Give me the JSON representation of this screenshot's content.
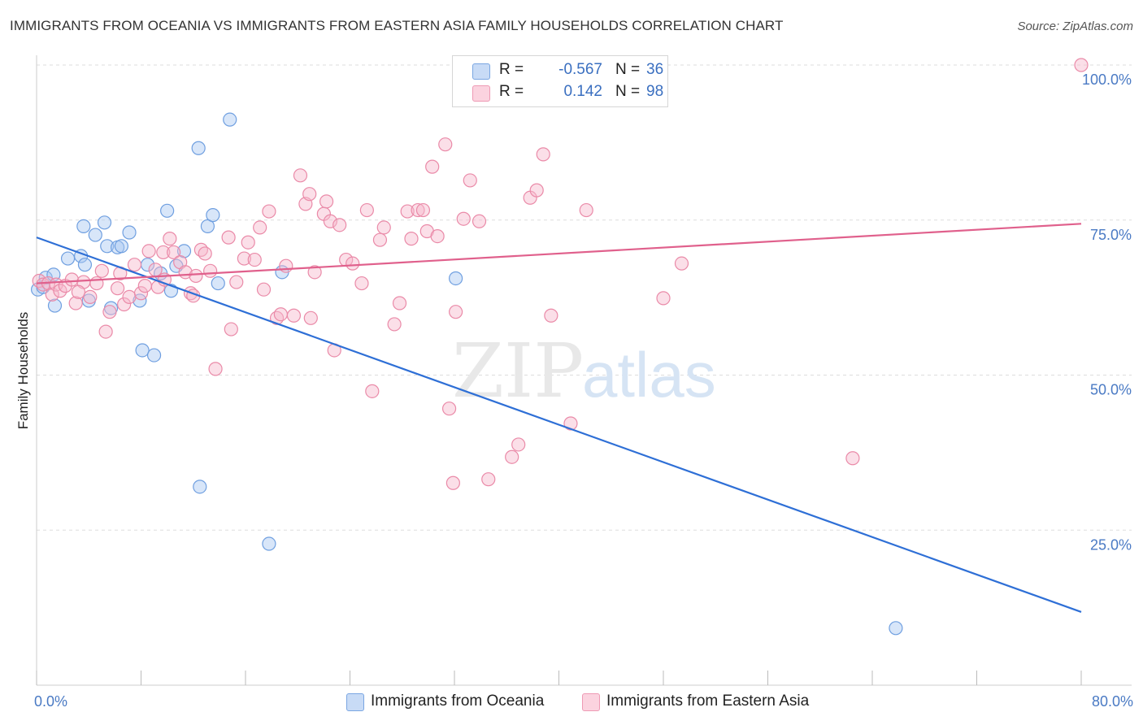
{
  "header": {
    "title": "IMMIGRANTS FROM OCEANIA VS IMMIGRANTS FROM EASTERN ASIA FAMILY HOUSEHOLDS CORRELATION CHART",
    "source": "Source: ZipAtlas.com"
  },
  "legend": {
    "r_label": "R =",
    "n_label": "N =",
    "rows": [
      {
        "r": "-0.567",
        "n": "36",
        "color": "#a9c8f2"
      },
      {
        "r": "0.142",
        "n": "98",
        "color": "#f7b9cb"
      }
    ]
  },
  "watermark": {
    "zip": "ZIP",
    "atlas": "atlas"
  },
  "chart_data": {
    "type": "scatter",
    "xlabel": "",
    "ylabel": "Family Households",
    "xlim": [
      0,
      80
    ],
    "ylim": [
      0,
      100
    ],
    "x_tick_labels": [
      "0.0%",
      "80.0%"
    ],
    "y_tick_labels": [
      "25.0%",
      "50.0%",
      "75.0%",
      "100.0%"
    ],
    "y_ticks": [
      25,
      50,
      75,
      100
    ],
    "grid": true,
    "series": [
      {
        "name": "Immigrants from Oceania",
        "color": "#a9c8f2",
        "stroke": "#6f9fe0",
        "trend": {
          "color": "#2e6fd6",
          "x": [
            0,
            80
          ],
          "y": [
            72.2,
            11.8
          ]
        },
        "points": [
          [
            0.1,
            63.8
          ],
          [
            0.5,
            64.2
          ],
          [
            0.7,
            65.7
          ],
          [
            1.3,
            66.2
          ],
          [
            1.4,
            61.2
          ],
          [
            2.4,
            68.8
          ],
          [
            3.4,
            69.2
          ],
          [
            3.6,
            74.0
          ],
          [
            3.7,
            67.8
          ],
          [
            4.0,
            62.0
          ],
          [
            4.5,
            72.6
          ],
          [
            5.2,
            74.6
          ],
          [
            5.4,
            70.8
          ],
          [
            5.7,
            60.8
          ],
          [
            6.2,
            70.6
          ],
          [
            6.5,
            70.8
          ],
          [
            7.1,
            73.0
          ],
          [
            7.9,
            62.0
          ],
          [
            8.1,
            54.0
          ],
          [
            8.5,
            67.8
          ],
          [
            9.0,
            53.2
          ],
          [
            9.5,
            66.4
          ],
          [
            10.0,
            76.5
          ],
          [
            10.3,
            63.6
          ],
          [
            10.7,
            67.6
          ],
          [
            11.3,
            70.0
          ],
          [
            12.4,
            86.6
          ],
          [
            12.5,
            32.0
          ],
          [
            13.1,
            74.0
          ],
          [
            13.5,
            75.8
          ],
          [
            13.9,
            64.8
          ],
          [
            14.8,
            91.2
          ],
          [
            17.8,
            22.8
          ],
          [
            18.8,
            66.6
          ],
          [
            32.1,
            65.6
          ],
          [
            65.8,
            9.2
          ]
        ]
      },
      {
        "name": "Immigrants from Eastern Asia",
        "color": "#f7b9cb",
        "stroke": "#ea8aa8",
        "trend": {
          "color": "#e0608c",
          "x": [
            0,
            80
          ],
          "y": [
            64.8,
            74.4
          ]
        },
        "points": [
          [
            0.2,
            65.2
          ],
          [
            0.5,
            64.6
          ],
          [
            0.9,
            64.8
          ],
          [
            1.2,
            63.0
          ],
          [
            1.5,
            64.6
          ],
          [
            1.8,
            63.6
          ],
          [
            2.2,
            64.4
          ],
          [
            2.7,
            65.4
          ],
          [
            3.0,
            61.6
          ],
          [
            3.6,
            65.0
          ],
          [
            4.1,
            62.6
          ],
          [
            4.6,
            64.8
          ],
          [
            5.0,
            66.8
          ],
          [
            5.3,
            57.0
          ],
          [
            5.6,
            60.2
          ],
          [
            6.2,
            64.0
          ],
          [
            6.4,
            66.4
          ],
          [
            6.7,
            61.4
          ],
          [
            7.1,
            62.6
          ],
          [
            7.5,
            67.8
          ],
          [
            8.0,
            63.2
          ],
          [
            8.3,
            64.4
          ],
          [
            8.6,
            70.0
          ],
          [
            9.1,
            67.0
          ],
          [
            9.3,
            64.2
          ],
          [
            9.7,
            69.8
          ],
          [
            10.2,
            72.0
          ],
          [
            10.5,
            69.8
          ],
          [
            11.0,
            68.2
          ],
          [
            11.4,
            66.6
          ],
          [
            11.8,
            63.2
          ],
          [
            12.2,
            66.0
          ],
          [
            12.6,
            70.2
          ],
          [
            12.9,
            69.6
          ],
          [
            13.3,
            66.8
          ],
          [
            13.7,
            51.0
          ],
          [
            14.7,
            72.2
          ],
          [
            14.9,
            57.4
          ],
          [
            15.3,
            65.0
          ],
          [
            15.9,
            68.8
          ],
          [
            16.2,
            71.4
          ],
          [
            16.7,
            68.6
          ],
          [
            17.1,
            73.8
          ],
          [
            17.4,
            63.8
          ],
          [
            17.8,
            76.4
          ],
          [
            18.4,
            59.2
          ],
          [
            18.7,
            59.8
          ],
          [
            19.1,
            67.6
          ],
          [
            19.7,
            59.6
          ],
          [
            20.2,
            82.2
          ],
          [
            20.6,
            77.6
          ],
          [
            20.9,
            79.2
          ],
          [
            21.3,
            66.6
          ],
          [
            22.0,
            76.0
          ],
          [
            22.2,
            78.0
          ],
          [
            22.5,
            74.8
          ],
          [
            22.8,
            54.0
          ],
          [
            23.2,
            74.2
          ],
          [
            23.7,
            68.6
          ],
          [
            24.2,
            68.0
          ],
          [
            24.9,
            64.8
          ],
          [
            25.3,
            76.6
          ],
          [
            25.7,
            47.4
          ],
          [
            26.3,
            71.8
          ],
          [
            26.6,
            73.8
          ],
          [
            27.4,
            58.2
          ],
          [
            27.8,
            61.6
          ],
          [
            28.4,
            76.4
          ],
          [
            28.7,
            72.0
          ],
          [
            29.2,
            76.6
          ],
          [
            29.6,
            76.6
          ],
          [
            29.9,
            73.2
          ],
          [
            30.3,
            83.6
          ],
          [
            30.7,
            72.4
          ],
          [
            31.3,
            87.2
          ],
          [
            31.6,
            44.6
          ],
          [
            31.9,
            32.6
          ],
          [
            32.1,
            60.2
          ],
          [
            32.7,
            75.2
          ],
          [
            33.2,
            81.4
          ],
          [
            33.9,
            74.8
          ],
          [
            34.6,
            33.2
          ],
          [
            36.4,
            36.8
          ],
          [
            36.9,
            38.8
          ],
          [
            37.8,
            78.6
          ],
          [
            38.3,
            79.8
          ],
          [
            38.8,
            85.6
          ],
          [
            39.4,
            59.6
          ],
          [
            40.9,
            42.2
          ],
          [
            42.1,
            76.6
          ],
          [
            48.0,
            62.4
          ],
          [
            49.4,
            68.0
          ],
          [
            62.5,
            36.6
          ],
          [
            80.0,
            100.0
          ],
          [
            12.0,
            62.8
          ],
          [
            3.2,
            63.4
          ],
          [
            21.0,
            59.2
          ],
          [
            9.8,
            65.4
          ]
        ]
      }
    ]
  }
}
